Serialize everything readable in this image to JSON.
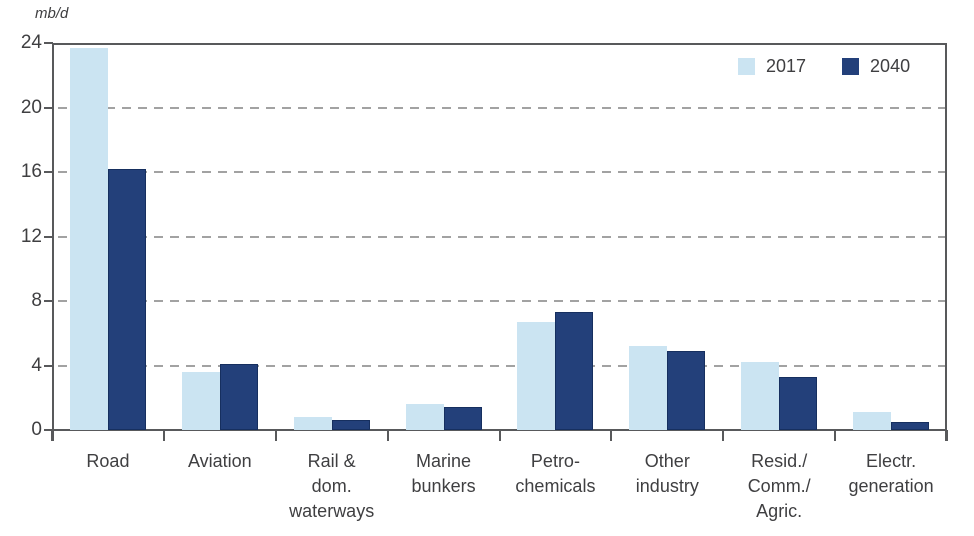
{
  "chart_data": {
    "type": "bar",
    "title": "",
    "ylabel": "mb/d",
    "xlabel": "",
    "categories": [
      "Road",
      "Aviation",
      "Rail &\ndom.\nwaterways",
      "Marine\nbunkers",
      "Petro-\nchemicals",
      "Other\nindustry",
      "Resid./\nComm./\nAgric.",
      "Electr.\ngeneration"
    ],
    "series": [
      {
        "name": "2017",
        "color": "#cbe4f2",
        "values": [
          23.7,
          3.6,
          0.8,
          1.6,
          6.7,
          5.2,
          4.2,
          1.1
        ]
      },
      {
        "name": "2040",
        "color": "#23407a",
        "values": [
          16.2,
          4.1,
          0.6,
          1.4,
          7.3,
          4.9,
          3.3,
          0.5
        ]
      }
    ],
    "ylim": [
      0,
      24
    ],
    "yticks": [
      0,
      4,
      8,
      12,
      16,
      20,
      24
    ],
    "grid": "horizontal dashed gridlines at interior ticks",
    "legend_position": "top-right inside plot area"
  },
  "colors": {
    "axis": "#58595b",
    "gridline": "#a2a2a2",
    "text": "#3f3f41",
    "series_2017": "#cbe4f2",
    "series_2040": "#23407a",
    "background": "#ffffff"
  }
}
